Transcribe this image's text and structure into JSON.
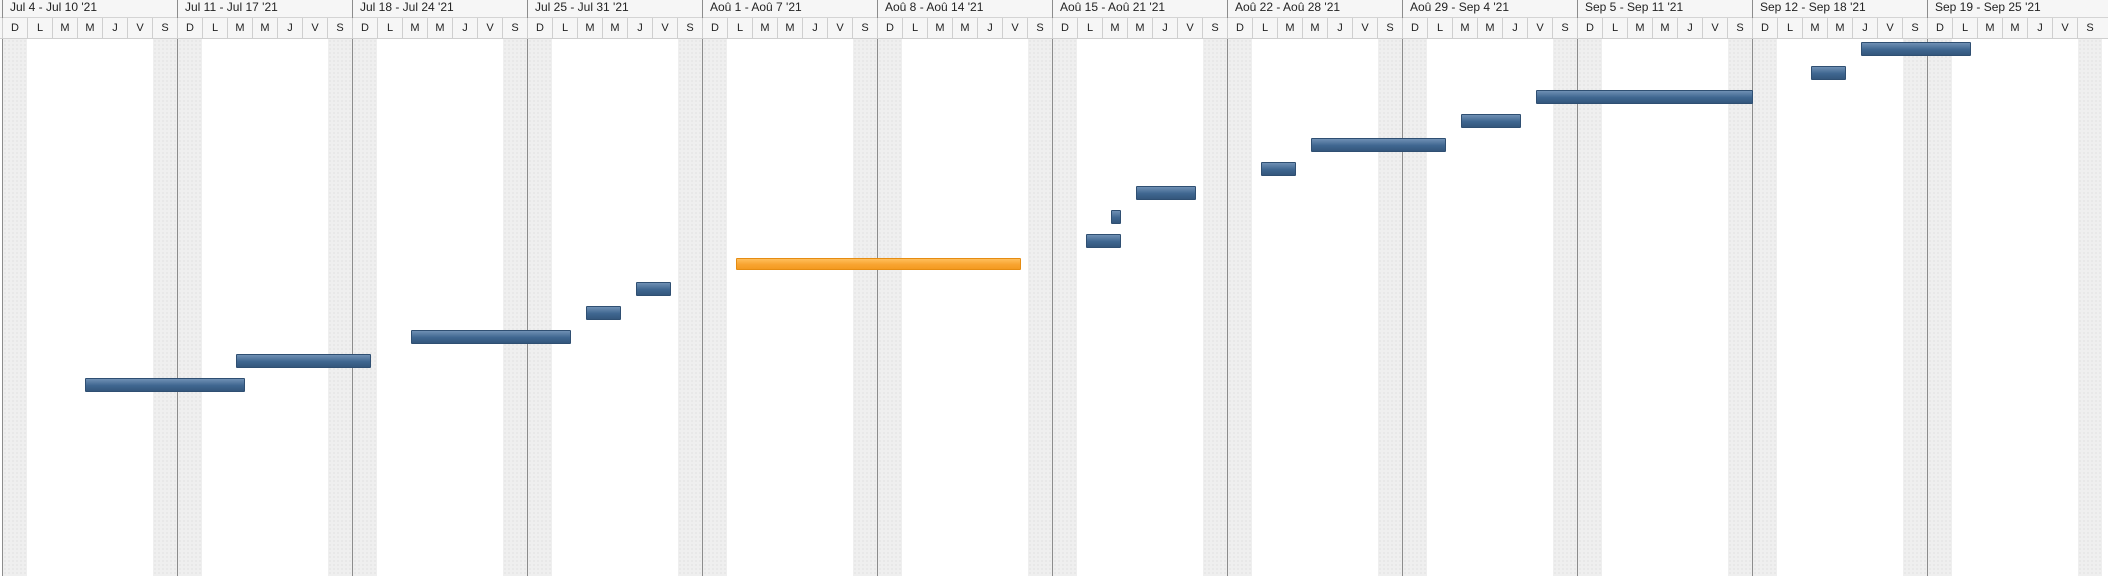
{
  "gantt": {
    "weeks": [
      "Jul 4 - Jul 10 '21",
      "Jul 11 - Jul 17 '21",
      "Jul 18 - Jul 24 '21",
      "Jul 25 - Jul 31 '21",
      "Aoû 1 - Aoû 7 '21",
      "Aoû 8 - Aoû 14 '21",
      "Aoû 15 - Aoû 21 '21",
      "Aoû 22 - Aoû 28 '21",
      "Aoû 29 - Sep 4 '21",
      "Sep 5 - Sep 11 '21",
      "Sep 12 - Sep 18 '21",
      "Sep 19 - Sep 25 '21"
    ],
    "day_letters": [
      "D",
      "L",
      "M",
      "M",
      "J",
      "V",
      "S"
    ],
    "visible_days_in_last_week": 7,
    "colors": {
      "task": "#3f6690",
      "critical_task": "#f8a431",
      "weekend": "#efefef"
    },
    "tasks": [
      {
        "start_week": 0,
        "start_day": 3.3,
        "duration_days": 6.4,
        "row": 14,
        "critical": false
      },
      {
        "start_week": 1,
        "start_day": 2.35,
        "duration_days": 5.4,
        "row": 13,
        "critical": false
      },
      {
        "start_week": 2,
        "start_day": 2.35,
        "duration_days": 6.4,
        "row": 12,
        "critical": false
      },
      {
        "start_week": 3,
        "start_day": 2.35,
        "duration_days": 1.4,
        "row": 11,
        "critical": false
      },
      {
        "start_week": 3,
        "start_day": 4.35,
        "duration_days": 1.4,
        "row": 10,
        "critical": false
      },
      {
        "start_week": 4,
        "start_day": 1.35,
        "duration_days": 11.4,
        "row": 9,
        "critical": true
      },
      {
        "start_week": 6,
        "start_day": 1.35,
        "duration_days": 1.4,
        "row": 8,
        "critical": false
      },
      {
        "start_week": 6,
        "start_day": 2.35,
        "duration_days": 0.4,
        "row": 7,
        "critical": false
      },
      {
        "start_week": 6,
        "start_day": 3.35,
        "duration_days": 2.4,
        "row": 6,
        "critical": false
      },
      {
        "start_week": 7,
        "start_day": 1.35,
        "duration_days": 1.4,
        "row": 5,
        "critical": false
      },
      {
        "start_week": 7,
        "start_day": 3.35,
        "duration_days": 5.4,
        "row": 4,
        "critical": false
      },
      {
        "start_week": 8,
        "start_day": 2.35,
        "duration_days": 2.4,
        "row": 3,
        "critical": false
      },
      {
        "start_week": 8,
        "start_day": 5.35,
        "duration_days": 8.7,
        "row": 2,
        "critical": false
      },
      {
        "start_week": 10,
        "start_day": 2.35,
        "duration_days": 1.4,
        "row": 1,
        "critical": false
      },
      {
        "start_week": 10,
        "start_day": 4.35,
        "duration_days": 4.4,
        "row": 0,
        "critical": false
      }
    ]
  }
}
